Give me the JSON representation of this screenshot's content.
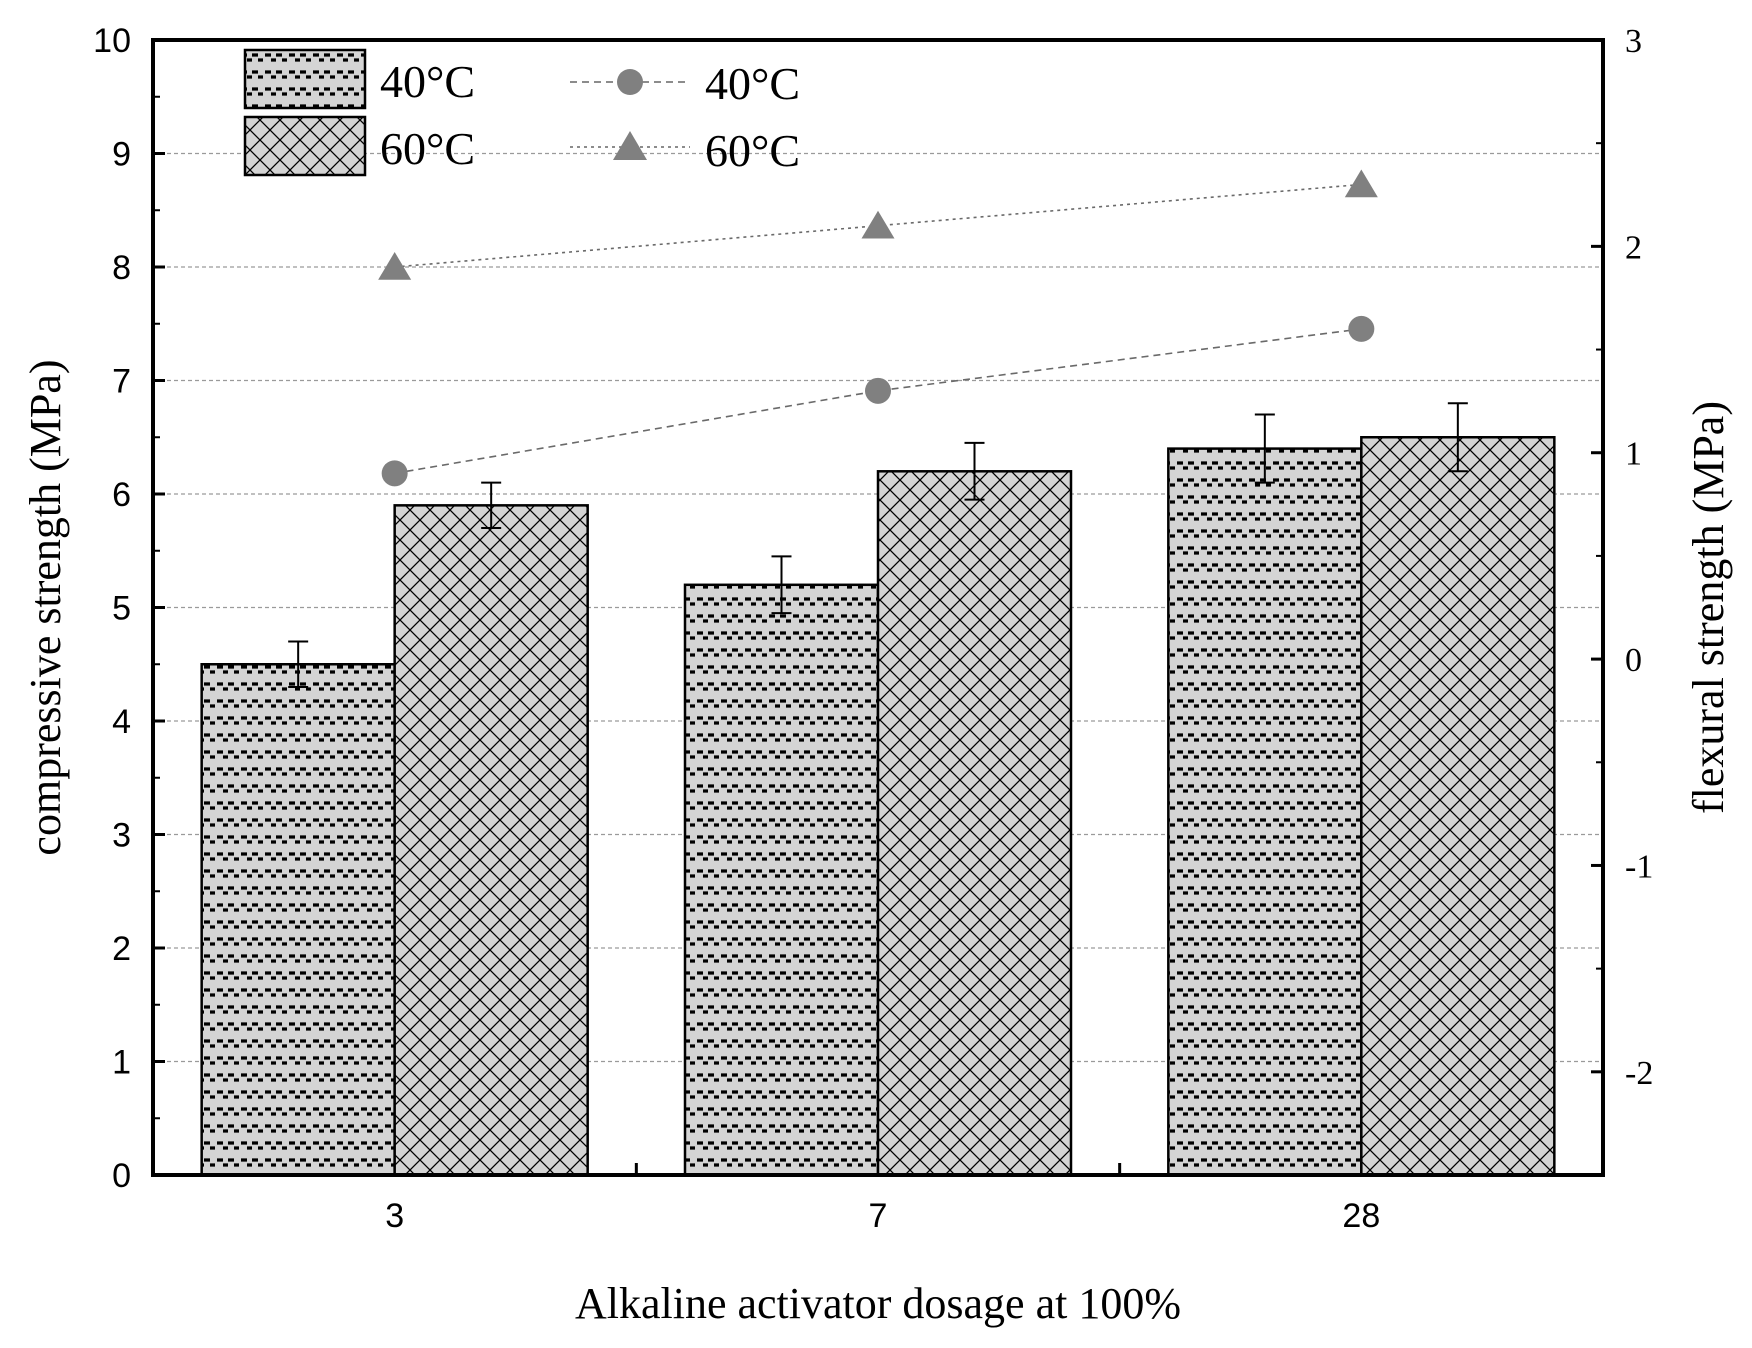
{
  "chart_data": {
    "type": "bar",
    "categories": [
      "3",
      "7",
      "28"
    ],
    "xlabel": "Alkaline activator dosage at 100%",
    "ylabel": "compressive strength (MPa)",
    "y2label": "flexural strength (MPa)",
    "ylim": [
      0,
      10
    ],
    "yticks": [
      "0",
      "1",
      "2",
      "3",
      "4",
      "5",
      "6",
      "7",
      "8",
      "9",
      "10"
    ],
    "y2lim": [
      -2.5,
      3
    ],
    "y2ticks": [
      "-2",
      "-1",
      "0",
      "1",
      "2",
      "3"
    ],
    "grid": true,
    "bar_series": [
      {
        "name": "40°C",
        "pattern": "wave-dash",
        "values": [
          4.5,
          5.2,
          6.4
        ],
        "errors": [
          0.2,
          0.25,
          0.3
        ]
      },
      {
        "name": "60°C",
        "pattern": "crosshatch",
        "values": [
          5.9,
          6.2,
          6.5
        ],
        "errors": [
          0.2,
          0.25,
          0.3
        ]
      }
    ],
    "line_series": [
      {
        "name": "40°C",
        "marker": "circle",
        "axis": "right",
        "values": [
          0.9,
          1.3,
          1.6
        ]
      },
      {
        "name": "60°C",
        "marker": "triangle",
        "axis": "right",
        "values": [
          1.9,
          2.1,
          2.3
        ]
      }
    ],
    "legend_position": "top-left",
    "colors": {
      "bar_fill": "#d4d4d4",
      "line_marker": "#808080",
      "grid": "#9a9a9a",
      "axis": "#000000"
    }
  }
}
